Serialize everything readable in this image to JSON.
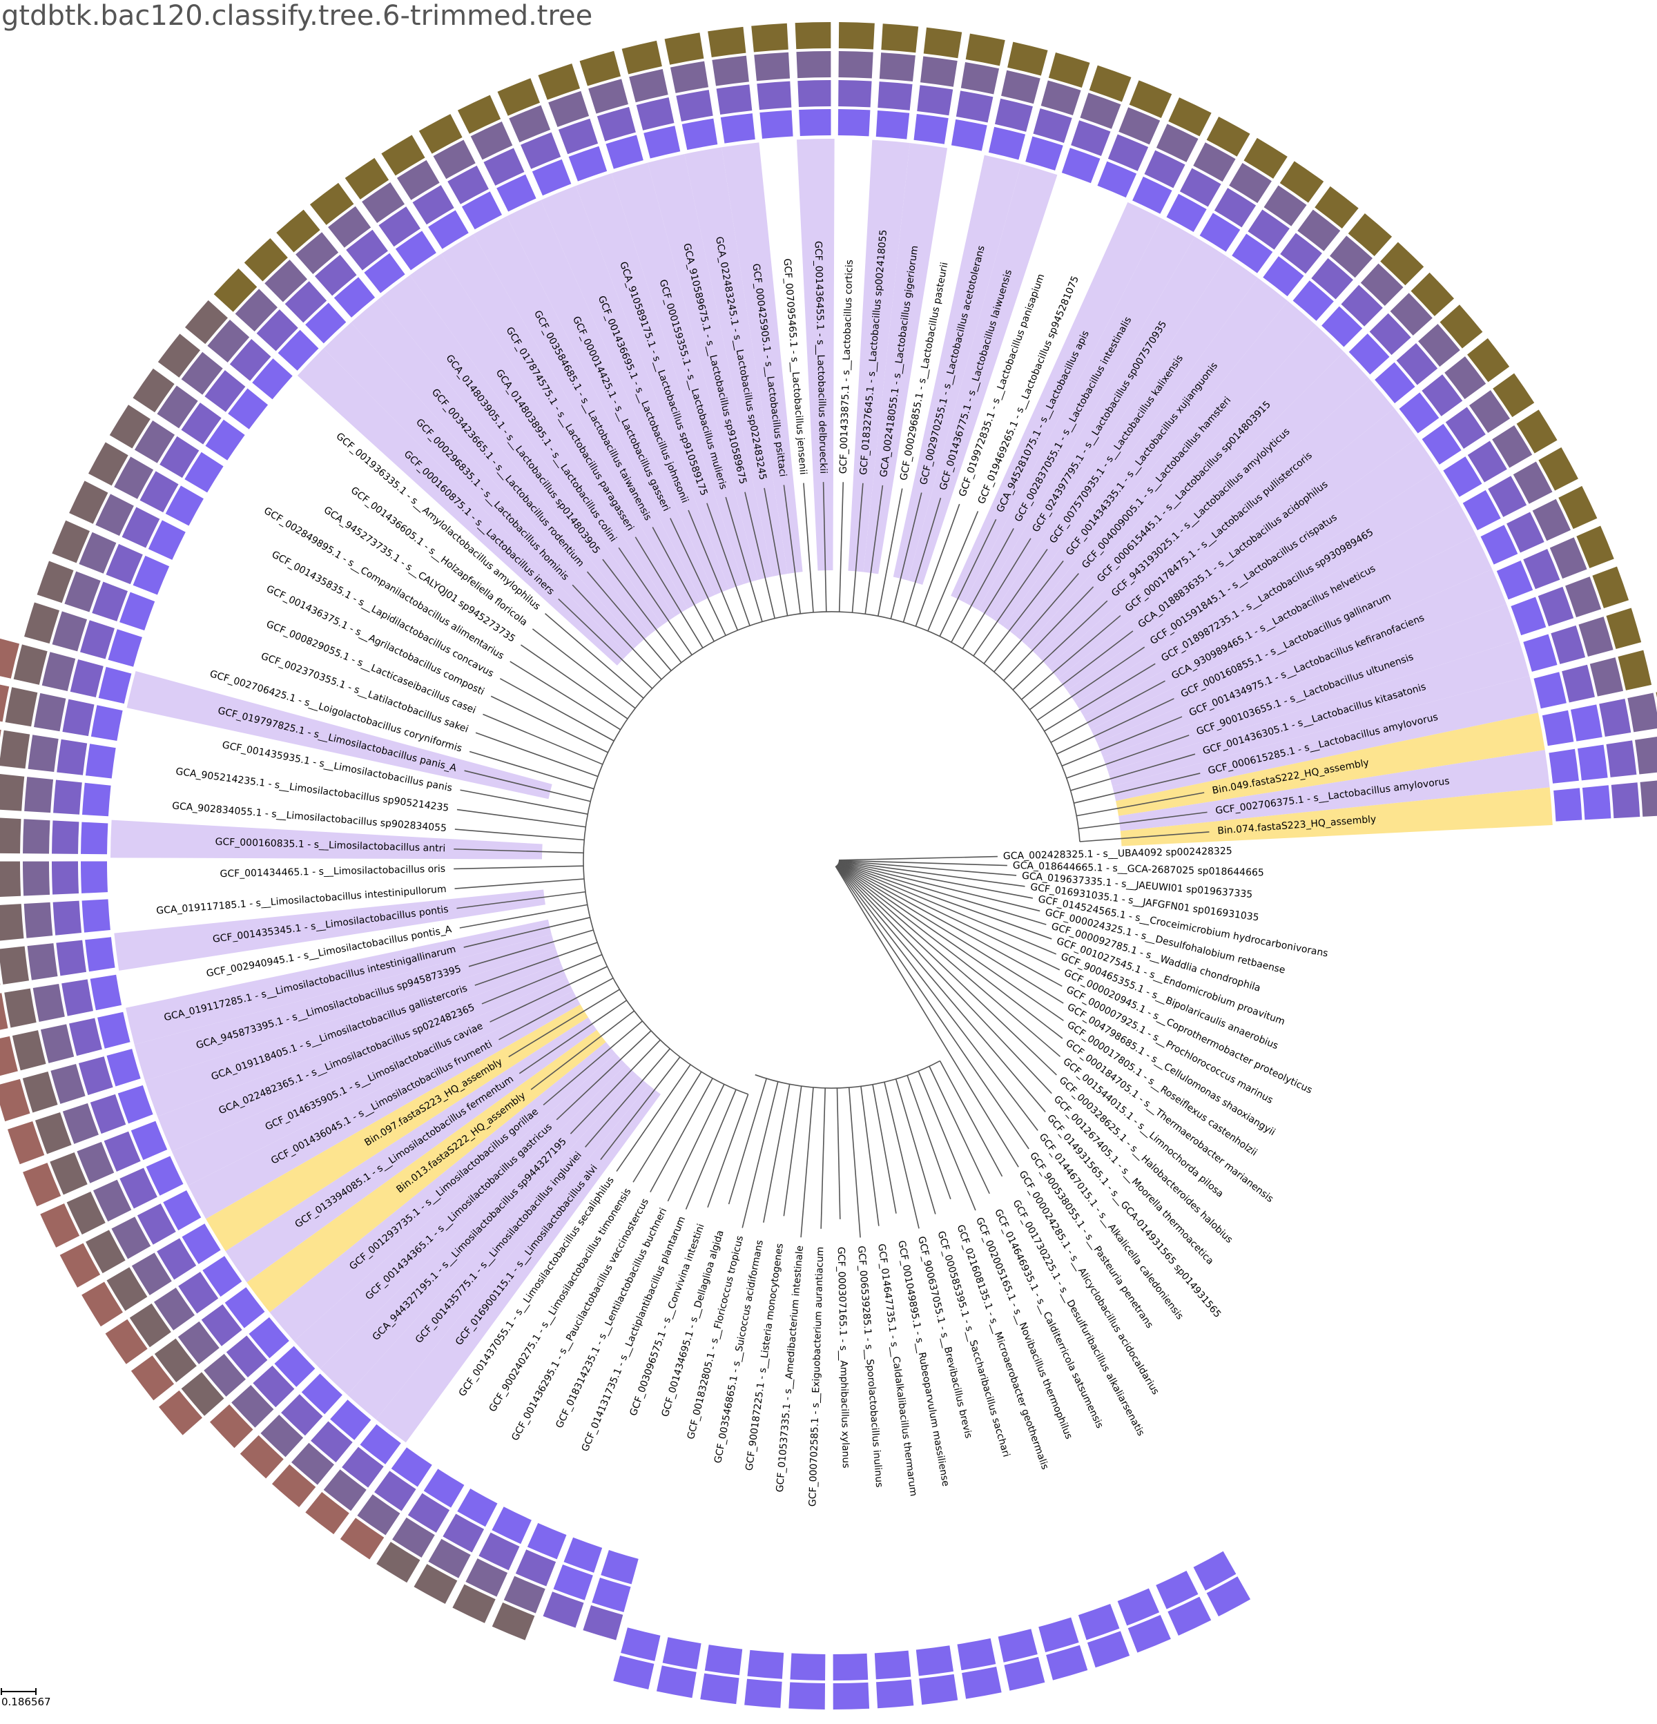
{
  "title": "gtdbtk.bac120.classify.tree.6-trimmed.tree",
  "scale_label": "0.186567",
  "colors": {
    "clade_highlight": "#dccdf6",
    "query_highlight": "#fde48f",
    "branch": "#555555",
    "box_palette": [
      "#7f68ef",
      "#7c62c6",
      "#7b6698",
      "#7a6668",
      "#7e6a2f",
      "#9e6660"
    ]
  },
  "leaves": [
    {
      "label": "GCA_002428325.1 - s__UBA4092 sp002428325",
      "boxes": []
    },
    {
      "label": "GCA_018644665.1 - s__GCA-2687025 sp018644665",
      "boxes": []
    },
    {
      "label": "GCA_019637335.1 - s__JAEUWI01 sp019637335",
      "boxes": []
    },
    {
      "label": "GCF_016931035.1 - s__JAFGFN01 sp016931035",
      "boxes": []
    },
    {
      "label": "GCF_014524565.1 - s__Croceimicrobium hydrocarbonivorans",
      "boxes": []
    },
    {
      "label": "GCF_000024325.1 - s__Desulfohalobium retbaense",
      "boxes": []
    },
    {
      "label": "GCF_000092785.1 - s__Waddlia chondrophila",
      "boxes": []
    },
    {
      "label": "GCF_001027545.1 - s__Endomicrobium proavitum",
      "boxes": []
    },
    {
      "label": "GCF_900465355.1 - s__Bipolaricaulis anaerobius",
      "boxes": []
    },
    {
      "label": "GCF_000020945.1 - s__Coprothermobacter proteolyticus",
      "boxes": []
    },
    {
      "label": "GCF_000007925.1 - s__Prochlorococcus marinus",
      "boxes": []
    },
    {
      "label": "GCF_004798685.1 - s__Cellulomonas shaoxiangyii",
      "boxes": []
    },
    {
      "label": "GCF_000017805.1 - s__Roseiflexus castenholzii",
      "boxes": []
    },
    {
      "label": "GCF_000184705.1 - s__Thermaerobacter marianensis",
      "boxes": []
    },
    {
      "label": "GCF_001544015.1 - s__Limnochorda pilosa",
      "boxes": []
    },
    {
      "label": "GCF_000328625.1 - s__Halobacteroides halobius",
      "boxes": []
    },
    {
      "label": "GCF_001267405.1 - s__Moorella thermoacetica",
      "boxes": []
    },
    {
      "label": "GCF_014931565.1 - s__GCA-014931565 sp014931565",
      "boxes": []
    },
    {
      "label": "GCF_014467015.1 - s__Alkalicella caledoniensis",
      "boxes": []
    },
    {
      "label": "GCF_900538055.1 - s__Pasteuria penetrans",
      "boxes": []
    },
    {
      "label": "GCF_000024285.1 - s__Alicyclobacillus acidocaldarius",
      "boxes": []
    },
    {
      "label": "GCF_001730225.1 - s__Desulfuribacillus alkaliarsenatis",
      "boxes": [
        0,
        0
      ]
    },
    {
      "label": "GCF_014646935.1 - s__Calditerricola satsumensis",
      "boxes": [
        0,
        0
      ]
    },
    {
      "label": "GCF_002005165.1 - s__Novibacillus thermophilus",
      "boxes": [
        0,
        0
      ]
    },
    {
      "label": "GCF_021608135.1 - s__Microaerobacter geothermalis",
      "boxes": [
        0,
        0
      ]
    },
    {
      "label": "GCF_000585395.1 - s__Saccharibacillus sacchari",
      "boxes": [
        0,
        0
      ]
    },
    {
      "label": "GCF_900637055.1 - s__Brevibacillus brevis",
      "boxes": [
        0,
        0
      ]
    },
    {
      "label": "GCF_001049895.1 - s__Rubeoparvulum massiliense",
      "boxes": [
        0,
        0
      ]
    },
    {
      "label": "GCF_014647735.1 - s__Caldalkalibacillus thermarum",
      "boxes": [
        0,
        0
      ]
    },
    {
      "label": "GCF_006539285.1 - s__Sporolactobacillus inulinus",
      "boxes": [
        0,
        0
      ]
    },
    {
      "label": "GCF_000307165.1 - s__Amphibacillus xylanus",
      "boxes": [
        0,
        0
      ]
    },
    {
      "label": "GCF_000702585.1 - s__Exiguobacterium aurantiacum",
      "boxes": [
        0,
        0
      ]
    },
    {
      "label": "GCF_010537335.1 - s__Amedibacterium intestinale",
      "boxes": [
        0,
        0
      ]
    },
    {
      "label": "GCF_900187225.1 - s__Listeria monocytogenes",
      "boxes": [
        0,
        0
      ]
    },
    {
      "label": "GCF_003546865.1 - s__Suicoccus acidiformans",
      "boxes": [
        0,
        0
      ]
    },
    {
      "label": "GCF_001832805.1 - s__Floricoccus tropicus",
      "boxes": [
        0,
        0
      ]
    },
    {
      "label": "GCF_001434695.1 - s__Dellaglioa algida",
      "boxes": [
        0,
        0,
        1
      ]
    },
    {
      "label": "GCF_003096575.1 - s__Convivina intestini",
      "boxes": [
        0,
        0,
        1
      ]
    },
    {
      "label": "GCF_014131735.1 - s__Lactiplantibacillus plantarum",
      "boxes": [
        0,
        1,
        2,
        3
      ]
    },
    {
      "label": "GCF_018314235.1 - s__Lentilactobacillus buchneri",
      "boxes": [
        0,
        1,
        2,
        3
      ]
    },
    {
      "label": "GCF_001436295.1 - s__Paucilactobacillus vaccinostercus",
      "boxes": [
        0,
        1,
        2,
        3
      ]
    },
    {
      "label": "GCF_900240275.1 - s__Limosilactobacillus timonensis",
      "boxes": [
        0,
        1,
        2,
        3
      ]
    },
    {
      "label": "GCF_001437055.1 - s__Limosilactobacillus secaliphilus",
      "boxes": [
        0,
        1,
        2,
        5
      ]
    },
    {
      "label": "GCF_016900115.1 - s__Limosilactobacillus alvi",
      "boxes": [
        0,
        1,
        2,
        5
      ],
      "hl": "clade"
    },
    {
      "label": "GCF_001435775.1 - s__Limosilactobacillus ingluviei",
      "boxes": [
        0,
        1,
        2,
        5
      ],
      "hl": "clade"
    },
    {
      "label": "GCA_944327195.1 - s__Limosilactobacillus sp944327195",
      "boxes": [
        0,
        1,
        2,
        5
      ],
      "hl": "clade"
    },
    {
      "label": "GCF_001434365.1 - s__Limosilactobacillus gastricus",
      "boxes": [
        0,
        1,
        2,
        5
      ],
      "hl": "clade"
    },
    {
      "label": "GCF_001293735.1 - s__Limosilactobacillus gorillae",
      "boxes": [
        0,
        1,
        2,
        3,
        5
      ],
      "hl": "clade"
    },
    {
      "label": "Bin.013.fastaS222_HQ_assembly",
      "boxes": [
        0,
        1,
        2,
        3,
        5
      ],
      "hl": "query"
    },
    {
      "label": "GCF_013394085.1 - s__Limosilactobacillus fermentum",
      "boxes": [
        0,
        1,
        2,
        3,
        5
      ],
      "hl": "clade"
    },
    {
      "label": "Bin.097.fastaS223_HQ_assembly",
      "boxes": [
        0,
        1,
        2,
        3,
        5
      ],
      "hl": "query"
    },
    {
      "label": "GCF_001436045.1 - s__Limosilactobacillus frumenti",
      "boxes": [
        0,
        1,
        2,
        3,
        5
      ],
      "hl": "clade"
    },
    {
      "label": "GCF_014635905.1 - s__Limosilactobacillus caviae",
      "boxes": [
        0,
        1,
        2,
        3,
        5
      ],
      "hl": "clade"
    },
    {
      "label": "GCA_022482365.1 - s__Limosilactobacillus sp022482365",
      "boxes": [
        0,
        1,
        2,
        3,
        5
      ],
      "hl": "clade"
    },
    {
      "label": "GCA_019118405.1 - s__Limosilactobacillus gallistercoris",
      "boxes": [
        0,
        1,
        2,
        3,
        5
      ],
      "hl": "clade"
    },
    {
      "label": "GCA_945873395.1 - s__Limosilactobacillus sp945873395",
      "boxes": [
        0,
        1,
        2,
        3,
        5
      ],
      "hl": "clade"
    },
    {
      "label": "GCA_019117285.1 - s__Limosilactobacillus intestinigallinarum",
      "boxes": [
        0,
        1,
        2,
        3,
        5
      ],
      "hl": "clade"
    },
    {
      "label": "GCF_002940945.1 - s__Limosilactobacillus pontis_A",
      "boxes": [
        0,
        1,
        2,
        3,
        5
      ]
    },
    {
      "label": "GCF_001435345.1 - s__Limosilactobacillus pontis",
      "boxes": [
        0,
        1,
        2,
        3,
        5
      ],
      "hl": "clade"
    },
    {
      "label": "GCA_019117185.1 - s__Limosilactobacillus intestinipullorum",
      "boxes": [
        0,
        1,
        2,
        3,
        5
      ]
    },
    {
      "label": "GCF_001434465.1 - s__Limosilactobacillus oris",
      "boxes": [
        0,
        1,
        2,
        3,
        5
      ]
    },
    {
      "label": "GCF_000160835.1 - s__Limosilactobacillus antri",
      "boxes": [
        0,
        1,
        2,
        3,
        5
      ],
      "hl": "clade"
    },
    {
      "label": "GCA_902834055.1 - s__Limosilactobacillus sp902834055",
      "boxes": [
        0,
        1,
        2,
        3,
        5
      ]
    },
    {
      "label": "GCA_905214235.1 - s__Limosilactobacillus sp905214235",
      "boxes": [
        0,
        1,
        2,
        3,
        5
      ]
    },
    {
      "label": "GCF_001435935.1 - s__Limosilactobacillus panis",
      "boxes": [
        0,
        1,
        2,
        3,
        5
      ]
    },
    {
      "label": "GCF_019797825.1 - s__Limosilactobacillus panis_A",
      "boxes": [
        0,
        1,
        2,
        3,
        5
      ],
      "hl": "clade"
    },
    {
      "label": "GCF_002706425.1 - s__Loigolactobacillus coryniformis",
      "boxes": [
        0,
        1,
        2,
        3
      ]
    },
    {
      "label": "GCF_002370355.1 - s__Latilactobacillus sakei",
      "boxes": [
        0,
        1,
        2,
        3
      ]
    },
    {
      "label": "GCF_000829055.1 - s__Lacticaseibacillus casei",
      "boxes": [
        0,
        1,
        2,
        3
      ]
    },
    {
      "label": "GCF_001436375.1 - s__Agrilactobacillus composti",
      "boxes": [
        0,
        1,
        2,
        3
      ]
    },
    {
      "label": "GCF_001435835.1 - s__Lapidilactobacillus concavus",
      "boxes": [
        0,
        1,
        2,
        3
      ]
    },
    {
      "label": "GCF_002849895.1 - s__Companilactobacillus alimentarius",
      "boxes": [
        0,
        1,
        2,
        3
      ]
    },
    {
      "label": "GCA_945273735.1 - s__CALYQJ01 sp945273735",
      "boxes": [
        0,
        1,
        2,
        3
      ]
    },
    {
      "label": "GCF_001436605.1 - s__Holzapfeliella floricola",
      "boxes": [
        0,
        1,
        2,
        3
      ]
    },
    {
      "label": "GCF_001936335.1 - s__Amylolactobacillus amylophilus",
      "boxes": [
        0,
        1,
        2,
        3
      ]
    },
    {
      "label": "GCF_000160875.1 - s__Lactobacillus iners",
      "boxes": [
        0,
        1,
        2,
        4
      ],
      "hl": "clade"
    },
    {
      "label": "GCF_000296835.1 - s__Lactobacillus hominis",
      "boxes": [
        0,
        1,
        2,
        4
      ],
      "hl": "clade"
    },
    {
      "label": "GCF_003423665.1 - s__Lactobacillus rodentium",
      "boxes": [
        0,
        1,
        2,
        4
      ],
      "hl": "clade"
    },
    {
      "label": "GCA_014803905.1 - s__Lactobacillus sp014803905",
      "boxes": [
        0,
        1,
        2,
        4
      ],
      "hl": "clade"
    },
    {
      "label": "GCA_014803895.1 - s__Lactobacillus colini",
      "boxes": [
        0,
        1,
        2,
        4
      ],
      "hl": "clade"
    },
    {
      "label": "GCF_017874575.1 - s__Lactobacillus paragasseri",
      "boxes": [
        0,
        1,
        2,
        4
      ],
      "hl": "clade"
    },
    {
      "label": "GCF_003584685.1 - s__Lactobacillus taiwanensis",
      "boxes": [
        0,
        1,
        2,
        4
      ],
      "hl": "clade"
    },
    {
      "label": "GCF_000014425.1 - s__Lactobacillus gasseri",
      "boxes": [
        0,
        1,
        2,
        4
      ],
      "hl": "clade"
    },
    {
      "label": "GCF_001436695.1 - s__Lactobacillus johnsonii",
      "boxes": [
        0,
        1,
        2,
        4
      ],
      "hl": "clade"
    },
    {
      "label": "GCA_910589175.1 - s__Lactobacillus sp910589175",
      "boxes": [
        0,
        1,
        2,
        4
      ],
      "hl": "clade"
    },
    {
      "label": "GCF_000159355.1 - s__Lactobacillus mulieris",
      "boxes": [
        0,
        1,
        2,
        4
      ],
      "hl": "clade"
    },
    {
      "label": "GCA_910589675.1 - s__Lactobacillus sp910589675",
      "boxes": [
        0,
        1,
        2,
        4
      ],
      "hl": "clade"
    },
    {
      "label": "GCA_022483245.1 - s__Lactobacillus sp022483245",
      "boxes": [
        0,
        1,
        2,
        4
      ],
      "hl": "clade"
    },
    {
      "label": "GCF_000425905.1 - s__Lactobacillus psittaci",
      "boxes": [
        0,
        1,
        2,
        4
      ],
      "hl": "clade"
    },
    {
      "label": "GCF_007095465.1 - s__Lactobacillus jensenii",
      "boxes": [
        0,
        1,
        2,
        4
      ]
    },
    {
      "label": "GCF_001436455.1 - s__Lactobacillus delbrueckii",
      "boxes": [
        0,
        1,
        2,
        4
      ],
      "hl": "clade"
    },
    {
      "label": "GCF_001433875.1 - s__Lactobacillus corticis",
      "boxes": [
        0,
        1,
        2,
        4
      ]
    },
    {
      "label": "GCF_018327645.1 - s__Lactobacillus sp002418055",
      "boxes": [
        0,
        1,
        2,
        4
      ],
      "hl": "clade"
    },
    {
      "label": "GCA_002418055.1 - s__Lactobacillus gigeriorum",
      "boxes": [
        0,
        1,
        2,
        4
      ],
      "hl": "clade"
    },
    {
      "label": "GCF_000296855.1 - s__Lactobacillus pasteurii",
      "boxes": [
        0,
        1,
        2,
        4
      ]
    },
    {
      "label": "GCF_002970255.1 - s__Lactobacillus acetotolerans",
      "boxes": [
        0,
        1,
        2,
        4
      ],
      "hl": "clade"
    },
    {
      "label": "GCF_001436775.1 - s__Lactobacillus laiwuensis",
      "boxes": [
        0,
        1,
        2,
        4
      ],
      "hl": "clade"
    },
    {
      "label": "GCF_019972835.1 - s__Lactobacillus panisapium",
      "boxes": [
        0,
        1,
        2,
        4
      ]
    },
    {
      "label": "GCF_019469265.1 - s__Lactobacillus sp945281075",
      "boxes": [
        0,
        1,
        2,
        4
      ]
    },
    {
      "label": "GCA_945281075.1 - s__Lactobacillus apis",
      "boxes": [
        0,
        1,
        2,
        4
      ],
      "hl": "clade"
    },
    {
      "label": "GCF_002837055.1 - s__Lactobacillus intestinalis",
      "boxes": [
        0,
        1,
        2,
        4
      ],
      "hl": "clade"
    },
    {
      "label": "GCF_024397795.1 - s__Lactobacillus sp007570935",
      "boxes": [
        0,
        1,
        2,
        4
      ],
      "hl": "clade"
    },
    {
      "label": "GCF_007570935.1 - s__Lactobacillus kalixensis",
      "boxes": [
        0,
        1,
        2,
        4
      ],
      "hl": "clade"
    },
    {
      "label": "GCF_001434335.1 - s__Lactobacillus xujianguonis",
      "boxes": [
        0,
        1,
        2,
        4
      ],
      "hl": "clade"
    },
    {
      "label": "GCF_004009005.1 - s__Lactobacillus hamsteri",
      "boxes": [
        0,
        1,
        2,
        4
      ],
      "hl": "clade"
    },
    {
      "label": "GCF_000615445.1 - s__Lactobacillus sp014803915",
      "boxes": [
        0,
        1,
        2,
        4
      ],
      "hl": "clade"
    },
    {
      "label": "GCF_943193025.1 - s__Lactobacillus amylolyticus",
      "boxes": [
        0,
        1,
        2,
        4
      ],
      "hl": "clade"
    },
    {
      "label": "GCF_000178475.1 - s__Lactobacillus pullistercoris",
      "boxes": [
        0,
        1,
        2,
        4
      ],
      "hl": "clade"
    },
    {
      "label": "GCA_018883635.1 - s__Lactobacillus acidophilus",
      "boxes": [
        0,
        1,
        2,
        4
      ],
      "hl": "clade"
    },
    {
      "label": "GCF_001591845.1 - s__Lactobacillus crispatus",
      "boxes": [
        0,
        1,
        2,
        4
      ],
      "hl": "clade"
    },
    {
      "label": "GCF_018987235.1 - s__Lactobacillus sp930989465",
      "boxes": [
        0,
        1,
        2,
        4
      ],
      "hl": "clade"
    },
    {
      "label": "GCA_930989465.1 - s__Lactobacillus helveticus",
      "boxes": [
        0,
        1,
        2,
        4
      ],
      "hl": "clade"
    },
    {
      "label": "GCF_000160855.1 - s__Lactobacillus gallinarum",
      "boxes": [
        0,
        1,
        2,
        4
      ],
      "hl": "clade"
    },
    {
      "label": "GCF_001434975.1 - s__Lactobacillus kefiranofaciens",
      "boxes": [
        0,
        1,
        2,
        4
      ],
      "hl": "clade"
    },
    {
      "label": "GCF_900103655.1 - s__Lactobacillus ultunensis",
      "boxes": [
        0,
        1,
        2,
        4
      ],
      "hl": "clade"
    },
    {
      "label": "GCF_001436305.1 - s__Lactobacillus kitasatonis",
      "boxes": [
        0,
        1,
        2,
        4
      ],
      "hl": "clade"
    },
    {
      "label": "GCF_000615285.1 - s__Lactobacillus amylovorus",
      "boxes": [
        0,
        1,
        2,
        4
      ],
      "hl": "clade"
    },
    {
      "label": "Bin.049.fastaS222_HQ_assembly",
      "boxes": [
        0,
        0,
        1,
        2,
        4
      ],
      "hl": "query"
    },
    {
      "label": "GCF_002706375.1 - s__Lactobacillus amylovorus",
      "boxes": [
        0,
        0,
        1,
        2,
        4
      ],
      "hl": "clade"
    },
    {
      "label": "Bin.074.fastaS223_HQ_assembly",
      "boxes": [
        0,
        0,
        1,
        2,
        4
      ],
      "hl": "query"
    }
  ]
}
